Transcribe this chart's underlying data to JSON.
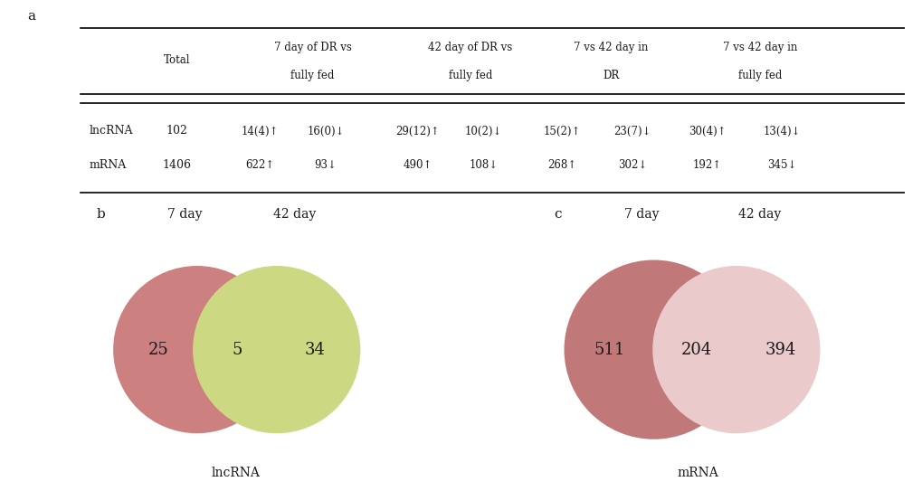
{
  "bg_color": "#ffffff",
  "table_label": "a",
  "table_headers": [
    "Total",
    "7 day of DR vs\nfully fed",
    "42 day of DR vs\nfully fed",
    "7 vs 42 day in\nDR",
    "7 vs 42 day in\nfully fed"
  ],
  "row_labels": [
    "lncRNA",
    "mRNA"
  ],
  "row_totals": [
    "102",
    "1406"
  ],
  "lncrna_texts": [
    "14(4)↑",
    "16(0)↓",
    "29(12)↑",
    "10(2)↓",
    "15(2)↑",
    "23(7)↓",
    "30(4)↑",
    "13(4)↓"
  ],
  "mrna_texts": [
    "622↑",
    "93↓",
    "490↑",
    "108↓",
    "268↑",
    "302↓",
    "192↑",
    "345↓"
  ],
  "venn_b_label": "b",
  "venn_b_left_label": "7 day",
  "venn_b_right_label": "42 day",
  "venn_b_left_val": "25",
  "venn_b_overlap_val": "5",
  "venn_b_right_val": "34",
  "venn_b_bottom_label": "lncRNA",
  "venn_b_left_color": "#cc8080",
  "venn_b_right_color": "#ccd882",
  "venn_c_label": "c",
  "venn_c_left_label": "7 day",
  "venn_c_right_label": "42 day",
  "venn_c_left_val": "511",
  "venn_c_overlap_val": "204",
  "venn_c_right_val": "394",
  "venn_c_bottom_label": "mRNA",
  "venn_c_left_color": "#c07878",
  "venn_c_right_color": "#eacaca",
  "font_color": "#1a1a1a",
  "font_family": "DejaVu Serif"
}
